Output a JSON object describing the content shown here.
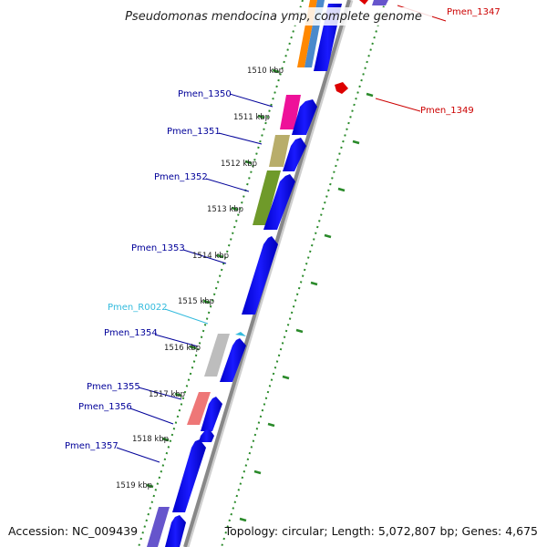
{
  "title": "Pseudomonas mendocina ymp, complete genome",
  "accession": "Accession: NC_009439",
  "summary": "Topology: circular; Length: 5,072,807 bp; Genes: 4,675",
  "ticks": [
    "1510 kbp",
    "1511 kbp",
    "1512 kbp",
    "1513 kbp",
    "1514 kbp",
    "1515 kbp",
    "1516 kbp",
    "1517 kbp",
    "1518 kbp",
    "1519 kbp"
  ],
  "genes_forward": [
    {
      "label": "Pmen_1347",
      "color": "#cc0000"
    },
    {
      "label": "Pmen_1349",
      "color": "#cc0000"
    }
  ],
  "genes_reverse": [
    {
      "label": "Pmen_1350",
      "color": "#000099"
    },
    {
      "label": "Pmen_1351",
      "color": "#000099"
    },
    {
      "label": "Pmen_1352",
      "color": "#000099"
    },
    {
      "label": "Pmen_1353",
      "color": "#000099"
    },
    {
      "label": "Pmen_R0022",
      "color": "#33bbdd"
    },
    {
      "label": "Pmen_1354",
      "color": "#000099"
    },
    {
      "label": "Pmen_1355",
      "color": "#000099"
    },
    {
      "label": "Pmen_1356",
      "color": "#000099"
    },
    {
      "label": "Pmen_1357",
      "color": "#000099"
    }
  ],
  "colors": {
    "cds": "#0000ee",
    "backbone": "#888888",
    "tick_marks": "#2a8a2a",
    "forward_feature": "#dd0000",
    "trna": "#33bbdd"
  }
}
